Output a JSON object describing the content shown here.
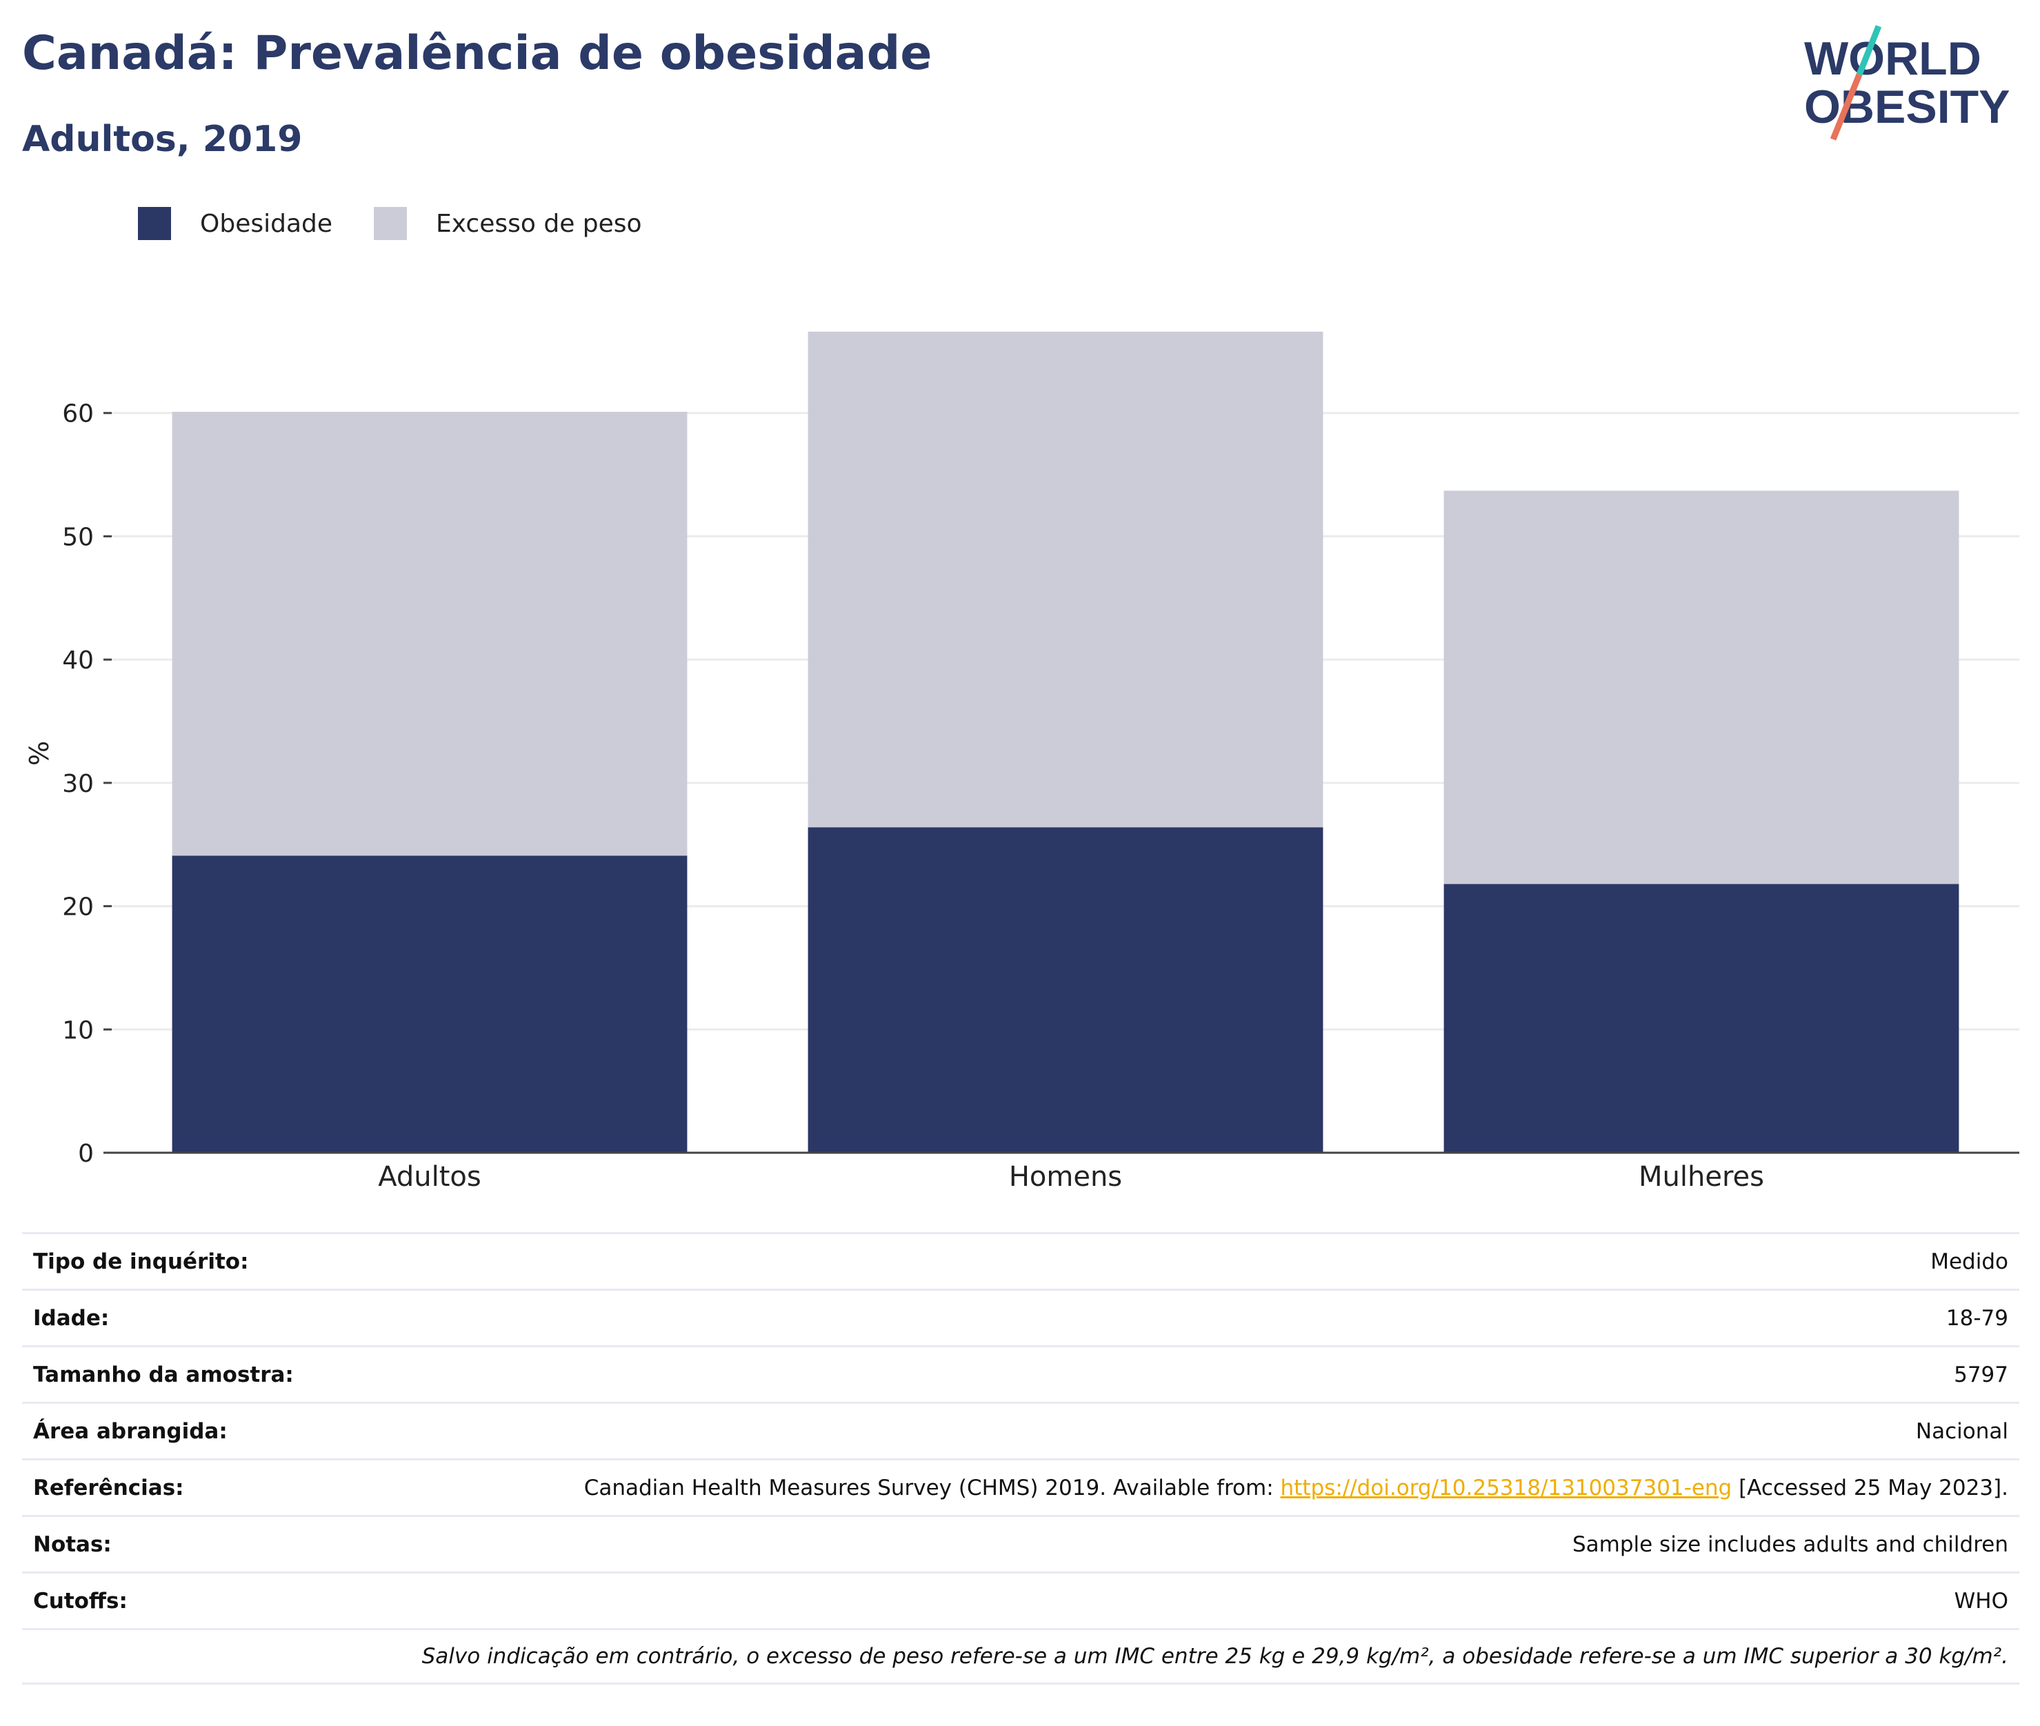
{
  "header": {
    "title": "Canadá: Prevalência de obesidade",
    "subtitle": "Adultos, 2019"
  },
  "logo": {
    "line1": "WORLD",
    "line2": "OBESITY",
    "colors": {
      "text": "#2b3a67",
      "slash_teal": "#2ec4b6",
      "slash_coral": "#e8735a"
    }
  },
  "legend": {
    "items": [
      {
        "label": "Obesidade",
        "color": "#2b3765"
      },
      {
        "label": "Excesso de peso",
        "color": "#cbccd7"
      }
    ]
  },
  "chart_data": {
    "type": "bar",
    "stacked": true,
    "categories": [
      "Adultos",
      "Homens",
      "Mulheres"
    ],
    "series": [
      {
        "name": "Obesidade",
        "values": [
          24.1,
          26.4,
          21.8
        ],
        "color": "#2b3765"
      },
      {
        "name": "Excesso de peso",
        "values": [
          36.0,
          40.2,
          31.9
        ],
        "color": "#cbccd7"
      }
    ],
    "ylabel": "%",
    "ylim": [
      0,
      70
    ],
    "yticks": [
      0,
      10,
      20,
      30,
      40,
      50,
      60
    ],
    "grid": true,
    "legend_position": "top-left"
  },
  "info": {
    "rows": [
      {
        "label": "Tipo de inquérito:",
        "value": "Medido"
      },
      {
        "label": "Idade:",
        "value": "18-79"
      },
      {
        "label": "Tamanho da amostra:",
        "value": "5797"
      },
      {
        "label": "Área abrangida:",
        "value": "Nacional"
      }
    ],
    "references": {
      "label": "Referências:",
      "before": "Canadian Health Measures Survey (CHMS) 2019. Available from: ",
      "link": "https://doi.org/10.25318/1310037301-eng",
      "after": " [Accessed 25 May 2023]."
    },
    "notes": {
      "label": "Notas:",
      "value": "Sample size includes adults and children"
    },
    "cutoffs": {
      "label": "Cutoffs:",
      "value": "WHO"
    },
    "footnote": "Salvo indicação em contrário, o excesso de peso refere-se a um IMC entre 25 kg e 29,9 kg/m², a obesidade refere-se a um IMC superior a 30 kg/m²."
  }
}
